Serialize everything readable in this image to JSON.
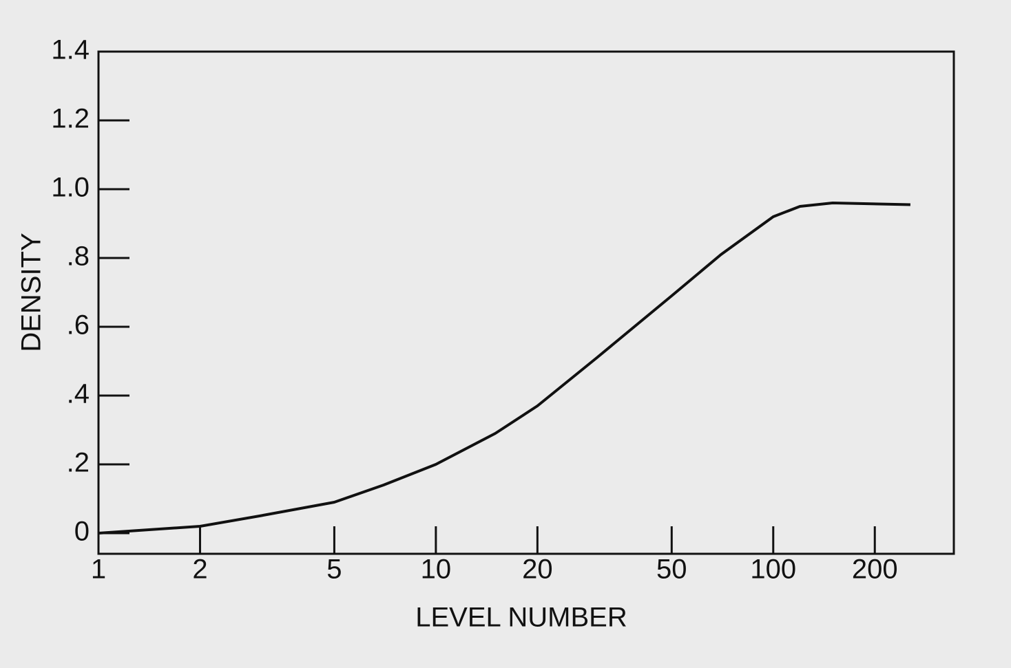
{
  "chart_data": {
    "type": "line",
    "xlabel": "LEVEL NUMBER",
    "ylabel": "DENSITY",
    "xscale": "log",
    "x": [
      1,
      2,
      3,
      5,
      7,
      10,
      15,
      20,
      30,
      50,
      70,
      100,
      120,
      150,
      255
    ],
    "series": [
      {
        "color": "#111111",
        "values": [
          0.0,
          0.02,
          0.05,
          0.09,
          0.14,
          0.2,
          0.29,
          0.37,
          0.51,
          0.69,
          0.81,
          0.92,
          0.95,
          0.96,
          0.955
        ]
      }
    ],
    "xlim": [
      1,
      343
    ],
    "ylim": [
      -0.06,
      1.4
    ],
    "xticks": [
      1,
      2,
      5,
      10,
      20,
      50,
      100,
      200
    ],
    "yticks": [
      0,
      {
        "value": 0.2,
        "label": ".2"
      },
      {
        "value": 0.4,
        "label": ".4"
      },
      {
        "value": 0.6,
        "label": ".6"
      },
      {
        "value": 0.8,
        "label": ".8"
      },
      {
        "value": 1.0,
        "label": "1.0"
      },
      1.2,
      1.4
    ],
    "grid": false
  }
}
